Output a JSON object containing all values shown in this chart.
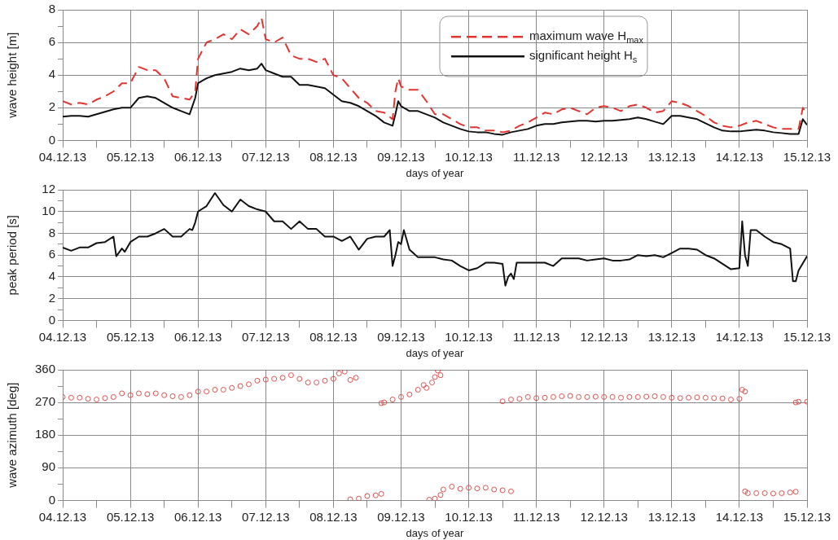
{
  "chart_data": [
    {
      "type": "line",
      "xlabel": "days of year",
      "ylabel": "wave height [m]",
      "xlim": [
        "--12-04",
        "--12-15"
      ],
      "xticks": [
        {
          "value": "--12-04",
          "label": "04.12.13"
        },
        {
          "value": "--12-04T12:00",
          "label": null
        },
        {
          "value": "--12-05",
          "label": "05.12.13"
        },
        {
          "value": "--12-05T12:00",
          "label": null
        },
        {
          "value": "--12-06",
          "label": "06.12.13"
        },
        {
          "value": "--12-06T12:00",
          "label": null
        },
        {
          "value": "--12-07",
          "label": "07.12.13"
        },
        {
          "value": "--12-07T12:00",
          "label": null
        },
        {
          "value": "--12-08",
          "label": "08.12.13"
        },
        {
          "value": "--12-08T12:00",
          "label": null
        },
        {
          "value": "--12-09",
          "label": "09.12.13"
        },
        {
          "value": "--12-09T12:00",
          "label": null
        },
        {
          "value": "--12-10",
          "label": "10.12.13"
        },
        {
          "value": "--12-10T12:00",
          "label": null
        },
        {
          "value": "--12-11",
          "label": "11.12.13"
        },
        {
          "value": "--12-11T12:00",
          "label": null
        },
        {
          "value": "--12-12",
          "label": "12.12.13"
        },
        {
          "value": "--12-12T12:00",
          "label": null
        },
        {
          "value": "--12-13",
          "label": "13.12.13"
        },
        {
          "value": "--12-13T12:00",
          "label": null
        },
        {
          "value": "--12-14",
          "label": "14.12.13"
        },
        {
          "value": "--12-14T12:00",
          "label": null
        },
        {
          "value": "--12-15",
          "label": "15.12.13"
        }
      ],
      "ylim": [
        0,
        8
      ],
      "yticks": [
        0,
        {
          "value": 1,
          "label": null
        },
        2,
        {
          "value": 3,
          "label": null
        },
        4,
        {
          "value": 5,
          "label": null
        },
        6,
        {
          "value": 7,
          "label": null
        },
        8
      ],
      "grid": true,
      "legend": "top right",
      "series": [
        {
          "name": "maximum wave H$_{max}$",
          "color": "#e3342f",
          "line_style": "dashed",
          "x": [
            "--12-04T00:00",
            "--12-04T03:00",
            "--12-04T06:00",
            "--12-04T09:00",
            "--12-04T12:00",
            "--12-04T15:00",
            "--12-04T18:00",
            "--12-04T21:00",
            "--12-05T00:00",
            "--12-05T03:00",
            "--12-05T06:00",
            "--12-05T09:00",
            "--12-05T12:00",
            "--12-05T15:00",
            "--12-05T18:00",
            "--12-05T21:00",
            "--12-05T23:00",
            "--12-06T00:00",
            "--12-06T03:00",
            "--12-06T06:00",
            "--12-06T09:00",
            "--12-06T12:00",
            "--12-06T15:00",
            "--12-06T18:00",
            "--12-06T21:00",
            "--12-06T22:30",
            "--12-07T00:00",
            "--12-07T03:00",
            "--12-07T06:00",
            "--12-07T09:00",
            "--12-07T12:00",
            "--12-07T15:00",
            "--12-07T18:00",
            "--12-07T21:00",
            "--12-08T00:00",
            "--12-08T03:00",
            "--12-08T06:00",
            "--12-08T09:00",
            "--12-08T12:00",
            "--12-08T15:00",
            "--12-08T18:00",
            "--12-08T21:00",
            "--12-08T22:00",
            "--12-08T23:00",
            "--12-09T00:00",
            "--12-09T03:00",
            "--12-09T06:00",
            "--12-09T09:00",
            "--12-09T12:00",
            "--12-09T15:00",
            "--12-09T18:00",
            "--12-09T21:00",
            "--12-10T00:00",
            "--12-10T03:00",
            "--12-10T06:00",
            "--12-10T09:00",
            "--12-10T12:00",
            "--12-10T15:00",
            "--12-10T18:00",
            "--12-10T21:00",
            "--12-11T00:00",
            "--12-11T03:00",
            "--12-11T06:00",
            "--12-11T09:00",
            "--12-11T12:00",
            "--12-11T15:00",
            "--12-11T18:00",
            "--12-11T21:00",
            "--12-12T00:00",
            "--12-12T03:00",
            "--12-12T06:00",
            "--12-12T09:00",
            "--12-12T12:00",
            "--12-12T15:00",
            "--12-12T18:00",
            "--12-12T21:00",
            "--12-13T00:00",
            "--12-13T03:00",
            "--12-13T06:00",
            "--12-13T09:00",
            "--12-13T12:00",
            "--12-13T15:00",
            "--12-13T18:00",
            "--12-13T21:00",
            "--12-14T00:00",
            "--12-14T03:00",
            "--12-14T06:00",
            "--12-14T09:00",
            "--12-14T12:00",
            "--12-14T15:00",
            "--12-14T18:00",
            "--12-14T21:00",
            "--12-14T22:30",
            "--12-15T00:00"
          ],
          "values": [
            2.4,
            2.2,
            2.3,
            2.2,
            2.5,
            2.7,
            3.0,
            3.5,
            3.5,
            4.5,
            4.3,
            4.3,
            3.8,
            2.7,
            2.6,
            2.5,
            3.0,
            5.0,
            6.0,
            6.2,
            6.5,
            6.2,
            6.8,
            6.5,
            7.0,
            7.5,
            6.2,
            6.0,
            6.3,
            5.2,
            5.0,
            5.0,
            4.8,
            5.0,
            4.0,
            3.8,
            3.2,
            2.6,
            2.3,
            1.8,
            1.7,
            1.3,
            3.0,
            3.8,
            3.3,
            3.1,
            3.1,
            2.4,
            1.6,
            1.6,
            1.3,
            1.0,
            0.8,
            0.8,
            0.6,
            0.6,
            0.5,
            0.6,
            0.9,
            1.1,
            1.4,
            1.7,
            1.6,
            1.9,
            2.0,
            1.8,
            1.6,
            2.0,
            2.1,
            2.0,
            1.8,
            2.1,
            2.2,
            2.0,
            1.7,
            1.8,
            2.4,
            2.3,
            2.1,
            1.8,
            1.5,
            1.1,
            0.9,
            0.8,
            0.9,
            1.1,
            1.2,
            1.0,
            0.8,
            0.7,
            0.7,
            0.7,
            2.0,
            1.6
          ]
        },
        {
          "name": "significant height H$_{s}$",
          "color": "#111111",
          "line_style": "solid",
          "x": [
            "--12-04T00:00",
            "--12-04T03:00",
            "--12-04T06:00",
            "--12-04T09:00",
            "--12-04T12:00",
            "--12-04T15:00",
            "--12-04T18:00",
            "--12-04T21:00",
            "--12-05T00:00",
            "--12-05T03:00",
            "--12-05T06:00",
            "--12-05T09:00",
            "--12-05T12:00",
            "--12-05T15:00",
            "--12-05T18:00",
            "--12-05T21:00",
            "--12-05T23:00",
            "--12-06T00:00",
            "--12-06T03:00",
            "--12-06T06:00",
            "--12-06T09:00",
            "--12-06T12:00",
            "--12-06T15:00",
            "--12-06T18:00",
            "--12-06T21:00",
            "--12-06T22:30",
            "--12-07T00:00",
            "--12-07T03:00",
            "--12-07T06:00",
            "--12-07T09:00",
            "--12-07T12:00",
            "--12-07T15:00",
            "--12-07T18:00",
            "--12-07T21:00",
            "--12-08T00:00",
            "--12-08T03:00",
            "--12-08T06:00",
            "--12-08T09:00",
            "--12-08T12:00",
            "--12-08T15:00",
            "--12-08T18:00",
            "--12-08T21:00",
            "--12-08T22:00",
            "--12-08T23:00",
            "--12-09T00:00",
            "--12-09T03:00",
            "--12-09T06:00",
            "--12-09T09:00",
            "--12-09T12:00",
            "--12-09T15:00",
            "--12-09T18:00",
            "--12-09T21:00",
            "--12-10T00:00",
            "--12-10T03:00",
            "--12-10T06:00",
            "--12-10T09:00",
            "--12-10T12:00",
            "--12-10T15:00",
            "--12-10T18:00",
            "--12-10T21:00",
            "--12-11T00:00",
            "--12-11T03:00",
            "--12-11T06:00",
            "--12-11T09:00",
            "--12-11T12:00",
            "--12-11T15:00",
            "--12-11T18:00",
            "--12-11T21:00",
            "--12-12T00:00",
            "--12-12T03:00",
            "--12-12T06:00",
            "--12-12T09:00",
            "--12-12T12:00",
            "--12-12T15:00",
            "--12-12T18:00",
            "--12-12T21:00",
            "--12-13T00:00",
            "--12-13T03:00",
            "--12-13T06:00",
            "--12-13T09:00",
            "--12-13T12:00",
            "--12-13T15:00",
            "--12-13T18:00",
            "--12-13T21:00",
            "--12-14T00:00",
            "--12-14T03:00",
            "--12-14T06:00",
            "--12-14T09:00",
            "--12-14T12:00",
            "--12-14T15:00",
            "--12-14T18:00",
            "--12-14T21:00",
            "--12-14T22:30",
            "--12-15T00:00"
          ],
          "values": [
            1.45,
            1.5,
            1.5,
            1.45,
            1.6,
            1.75,
            1.9,
            2.0,
            2.0,
            2.6,
            2.7,
            2.6,
            2.3,
            2.0,
            1.8,
            1.6,
            2.6,
            3.5,
            3.8,
            4.0,
            4.1,
            4.2,
            4.4,
            4.3,
            4.4,
            4.7,
            4.3,
            4.1,
            3.9,
            3.9,
            3.4,
            3.4,
            3.3,
            3.2,
            2.8,
            2.4,
            2.3,
            2.1,
            1.8,
            1.5,
            1.1,
            0.9,
            1.6,
            2.4,
            2.1,
            1.8,
            1.8,
            1.6,
            1.4,
            1.1,
            0.9,
            0.7,
            0.55,
            0.5,
            0.5,
            0.4,
            0.35,
            0.5,
            0.6,
            0.7,
            0.9,
            1.0,
            1.0,
            1.1,
            1.15,
            1.2,
            1.2,
            1.15,
            1.2,
            1.2,
            1.25,
            1.3,
            1.4,
            1.3,
            1.15,
            1.0,
            1.5,
            1.5,
            1.4,
            1.3,
            1.05,
            0.8,
            0.6,
            0.55,
            0.55,
            0.6,
            0.65,
            0.6,
            0.5,
            0.45,
            0.4,
            0.4,
            1.3,
            0.95
          ]
        }
      ]
    },
    {
      "type": "line",
      "xlabel": "days of year",
      "ylabel": "peak period [s]",
      "xlim": [
        "--12-04",
        "--12-15"
      ],
      "xticks": [
        {
          "value": "--12-04",
          "label": "04.12.13"
        },
        {
          "value": "--12-04T12:00",
          "label": null
        },
        {
          "value": "--12-05",
          "label": "05.12.13"
        },
        {
          "value": "--12-05T12:00",
          "label": null
        },
        {
          "value": "--12-06",
          "label": "06.12.13"
        },
        {
          "value": "--12-06T12:00",
          "label": null
        },
        {
          "value": "--12-07",
          "label": "07.12.13"
        },
        {
          "value": "--12-07T12:00",
          "label": null
        },
        {
          "value": "--12-08",
          "label": "08.12.13"
        },
        {
          "value": "--12-08T12:00",
          "label": null
        },
        {
          "value": "--12-09",
          "label": "09.12.13"
        },
        {
          "value": "--12-09T12:00",
          "label": null
        },
        {
          "value": "--12-10",
          "label": "10.12.13"
        },
        {
          "value": "--12-10T12:00",
          "label": null
        },
        {
          "value": "--12-11",
          "label": "11.12.13"
        },
        {
          "value": "--12-11T12:00",
          "label": null
        },
        {
          "value": "--12-12",
          "label": "12.12.13"
        },
        {
          "value": "--12-12T12:00",
          "label": null
        },
        {
          "value": "--12-13",
          "label": "13.12.13"
        },
        {
          "value": "--12-13T12:00",
          "label": null
        },
        {
          "value": "--12-14",
          "label": "14.12.13"
        },
        {
          "value": "--12-14T12:00",
          "label": null
        },
        {
          "value": "--12-15",
          "label": "15.12.13"
        }
      ],
      "ylim": [
        0,
        12
      ],
      "yticks": [
        0,
        {
          "value": 1,
          "label": null
        },
        2,
        {
          "value": 3,
          "label": null
        },
        4,
        {
          "value": 5,
          "label": null
        },
        6,
        {
          "value": 7,
          "label": null
        },
        8,
        {
          "value": 9,
          "label": null
        },
        10,
        {
          "value": 11,
          "label": null
        },
        12
      ],
      "grid": true,
      "color": "#111111",
      "x": [
        "--12-04T00:00",
        "--12-04T03:00",
        "--12-04T06:00",
        "--12-04T09:00",
        "--12-04T12:00",
        "--12-04T15:00",
        "--12-04T18:00",
        "--12-04T19:00",
        "--12-04T21:00",
        "--12-04T22:00",
        "--12-05T00:00",
        "--12-05T03:00",
        "--12-05T06:00",
        "--12-05T09:00",
        "--12-05T12:00",
        "--12-05T15:00",
        "--12-05T18:00",
        "--12-05T21:00",
        "--12-05T22:00",
        "--12-05T23:00",
        "--12-06T00:00",
        "--12-06T03:00",
        "--12-06T06:00",
        "--12-06T09:00",
        "--12-06T12:00",
        "--12-06T15:00",
        "--12-06T18:00",
        "--12-06T21:00",
        "--12-07T00:00",
        "--12-07T03:00",
        "--12-07T06:00",
        "--12-07T09:00",
        "--12-07T12:00",
        "--12-07T15:00",
        "--12-07T18:00",
        "--12-07T21:00",
        "--12-08T00:00",
        "--12-08T03:00",
        "--12-08T06:00",
        "--12-08T09:00",
        "--12-08T12:00",
        "--12-08T15:00",
        "--12-08T18:00",
        "--12-08T20:00",
        "--12-08T21:00",
        "--12-08T22:00",
        "--12-08T23:00",
        "--12-09T00:00",
        "--12-09T01:00",
        "--12-09T03:00",
        "--12-09T06:00",
        "--12-09T09:00",
        "--12-09T12:00",
        "--12-09T15:00",
        "--12-09T18:00",
        "--12-09T21:00",
        "--12-10T00:00",
        "--12-10T03:00",
        "--12-10T06:00",
        "--12-10T09:00",
        "--12-10T12:00",
        "--12-10T13:00",
        "--12-10T14:00",
        "--12-10T15:00",
        "--12-10T16:00",
        "--12-10T17:00",
        "--12-10T18:00",
        "--12-10T21:00",
        "--12-11T00:00",
        "--12-11T03:00",
        "--12-11T06:00",
        "--12-11T09:00",
        "--12-11T12:00",
        "--12-11T15:00",
        "--12-11T18:00",
        "--12-11T21:00",
        "--12-12T00:00",
        "--12-12T03:00",
        "--12-12T06:00",
        "--12-12T09:00",
        "--12-12T12:00",
        "--12-12T15:00",
        "--12-12T18:00",
        "--12-12T21:00",
        "--12-13T00:00",
        "--12-13T03:00",
        "--12-13T06:00",
        "--12-13T09:00",
        "--12-13T12:00",
        "--12-13T15:00",
        "--12-13T18:00",
        "--12-13T21:00",
        "--12-14T00:00",
        "--12-14T01:00",
        "--12-14T02:00",
        "--12-14T03:00",
        "--12-14T04:00",
        "--12-14T06:00",
        "--12-14T09:00",
        "--12-14T12:00",
        "--12-14T15:00",
        "--12-14T18:00",
        "--12-14T19:00",
        "--12-14T20:00",
        "--12-14T21:00",
        "--12-15T00:00"
      ],
      "values": [
        6.7,
        6.4,
        6.7,
        6.7,
        7.1,
        7.2,
        7.7,
        5.9,
        6.6,
        6.3,
        7.2,
        7.7,
        7.7,
        8.0,
        8.4,
        7.7,
        7.7,
        8.4,
        8.3,
        9.0,
        10.0,
        10.5,
        11.7,
        10.6,
        10.0,
        11.1,
        10.5,
        10.2,
        10.0,
        9.1,
        9.1,
        8.4,
        9.1,
        8.4,
        8.4,
        7.7,
        7.7,
        7.3,
        7.7,
        6.5,
        7.5,
        7.7,
        7.7,
        8.3,
        5.0,
        6.0,
        7.2,
        7.0,
        8.3,
        6.5,
        5.8,
        5.8,
        5.8,
        5.6,
        5.5,
        5.0,
        4.6,
        4.8,
        5.3,
        5.3,
        5.2,
        3.2,
        4.0,
        4.3,
        3.8,
        5.3,
        5.3,
        5.3,
        5.3,
        5.3,
        5.0,
        5.7,
        5.7,
        5.7,
        5.5,
        5.6,
        5.7,
        5.5,
        5.5,
        5.6,
        6.0,
        5.9,
        6.0,
        5.8,
        6.2,
        6.6,
        6.6,
        6.5,
        6.0,
        5.7,
        5.2,
        4.7,
        4.8,
        9.1,
        6.0,
        5.0,
        8.3,
        8.3,
        7.7,
        7.2,
        7.0,
        6.6,
        3.6,
        3.6,
        4.6,
        5.9
      ]
    },
    {
      "type": "scatter",
      "xlabel": "days of year",
      "ylabel": "wave azimuth [deg]",
      "xlim": [
        "--12-04",
        "--12-15"
      ],
      "xticks": [
        {
          "value": "--12-04",
          "label": "04.12.13"
        },
        {
          "value": "--12-04T12:00",
          "label": null
        },
        {
          "value": "--12-05",
          "label": "05.12.13"
        },
        {
          "value": "--12-05T12:00",
          "label": null
        },
        {
          "value": "--12-06",
          "label": "06.12.13"
        },
        {
          "value": "--12-06T12:00",
          "label": null
        },
        {
          "value": "--12-07",
          "label": "07.12.13"
        },
        {
          "value": "--12-07T12:00",
          "label": null
        },
        {
          "value": "--12-08",
          "label": "08.12.13"
        },
        {
          "value": "--12-08T12:00",
          "label": null
        },
        {
          "value": "--12-09",
          "label": "09.12.13"
        },
        {
          "value": "--12-09T12:00",
          "label": null
        },
        {
          "value": "--12-10",
          "label": "10.12.13"
        },
        {
          "value": "--12-10T12:00",
          "label": null
        },
        {
          "value": "--12-11",
          "label": "11.12.13"
        },
        {
          "value": "--12-11T12:00",
          "label": null
        },
        {
          "value": "--12-12",
          "label": "12.12.13"
        },
        {
          "value": "--12-12T12:00",
          "label": null
        },
        {
          "value": "--12-13",
          "label": "13.12.13"
        },
        {
          "value": "--12-13T12:00",
          "label": null
        },
        {
          "value": "--12-14",
          "label": "14.12.13"
        },
        {
          "value": "--12-14T12:00",
          "label": null
        },
        {
          "value": "--12-15",
          "label": "15.12.13"
        }
      ],
      "ylim": [
        0,
        360
      ],
      "yticks": [
        0,
        {
          "value": 45,
          "label": null
        },
        90,
        {
          "value": 135,
          "label": null
        },
        180,
        {
          "value": 225,
          "label": null
        },
        270,
        {
          "value": 315,
          "label": null
        },
        360
      ],
      "grid": true,
      "marker": "circle",
      "color": "#d9534f",
      "x": [
        "--12-04T00:00",
        "--12-04T03:00",
        "--12-04T06:00",
        "--12-04T09:00",
        "--12-04T12:00",
        "--12-04T15:00",
        "--12-04T18:00",
        "--12-04T21:00",
        "--12-05T00:00",
        "--12-05T03:00",
        "--12-05T06:00",
        "--12-05T09:00",
        "--12-05T12:00",
        "--12-05T15:00",
        "--12-05T18:00",
        "--12-05T21:00",
        "--12-06T00:00",
        "--12-06T03:00",
        "--12-06T06:00",
        "--12-06T09:00",
        "--12-06T12:00",
        "--12-06T15:00",
        "--12-06T18:00",
        "--12-06T21:00",
        "--12-07T00:00",
        "--12-07T03:00",
        "--12-07T06:00",
        "--12-07T09:00",
        "--12-07T12:00",
        "--12-07T15:00",
        "--12-07T18:00",
        "--12-07T21:00",
        "--12-08T00:00",
        "--12-08T02:00",
        "--12-08T04:00",
        "--12-08T06:00",
        "--12-08T08:00",
        "--12-08T06:00",
        "--12-08T09:00",
        "--12-08T12:00",
        "--12-08T15:00",
        "--12-08T17:00",
        "--12-08T17:00",
        "--12-08T18:00",
        "--12-08T21:00",
        "--12-09T00:00",
        "--12-09T03:00",
        "--12-09T06:00",
        "--12-09T08:00",
        "--12-09T09:00",
        "--12-09T11:00",
        "--12-09T12:00",
        "--12-09T13:00",
        "--12-09T14:00",
        "--12-09T10:00",
        "--12-09T12:00",
        "--12-09T14:00",
        "--12-09T15:00",
        "--12-09T18:00",
        "--12-09T21:00",
        "--12-10T00:00",
        "--12-10T03:00",
        "--12-10T06:00",
        "--12-10T09:00",
        "--12-10T12:00",
        "--12-10T15:00",
        "--12-10T12:00",
        "--12-10T15:00",
        "--12-10T18:00",
        "--12-10T21:00",
        "--12-11T00:00",
        "--12-11T03:00",
        "--12-11T06:00",
        "--12-11T09:00",
        "--12-11T12:00",
        "--12-11T15:00",
        "--12-11T18:00",
        "--12-11T21:00",
        "--12-12T00:00",
        "--12-12T03:00",
        "--12-12T06:00",
        "--12-12T09:00",
        "--12-12T12:00",
        "--12-12T15:00",
        "--12-12T18:00",
        "--12-12T21:00",
        "--12-13T00:00",
        "--12-13T03:00",
        "--12-13T06:00",
        "--12-13T09:00",
        "--12-13T12:00",
        "--12-13T15:00",
        "--12-13T18:00",
        "--12-13T21:00",
        "--12-14T00:00",
        "--12-14T01:00",
        "--12-14T02:00",
        "--12-14T02:00",
        "--12-14T03:00",
        "--12-14T06:00",
        "--12-14T09:00",
        "--12-14T12:00",
        "--12-14T15:00",
        "--12-14T18:00",
        "--12-14T20:00",
        "--12-14T20:00",
        "--12-14T21:00",
        "--12-15T00:00"
      ],
      "values": [
        285,
        283,
        283,
        280,
        278,
        282,
        285,
        295,
        290,
        295,
        293,
        295,
        290,
        287,
        285,
        290,
        300,
        300,
        305,
        305,
        310,
        315,
        320,
        330,
        333,
        335,
        338,
        345,
        335,
        325,
        325,
        330,
        335,
        350,
        355,
        332,
        338,
        3,
        5,
        12,
        14,
        18,
        268,
        270,
        278,
        285,
        292,
        305,
        318,
        310,
        325,
        340,
        358,
        345,
        2,
        5,
        15,
        30,
        38,
        32,
        35,
        33,
        35,
        30,
        28,
        25,
        273,
        278,
        280,
        285,
        282,
        283,
        285,
        287,
        288,
        285,
        285,
        286,
        285,
        285,
        283,
        285,
        285,
        286,
        287,
        285,
        283,
        282,
        283,
        284,
        283,
        282,
        281,
        278,
        280,
        305,
        300,
        25,
        20,
        20,
        20,
        19,
        20,
        22,
        24,
        270,
        272,
        272
      ]
    }
  ]
}
